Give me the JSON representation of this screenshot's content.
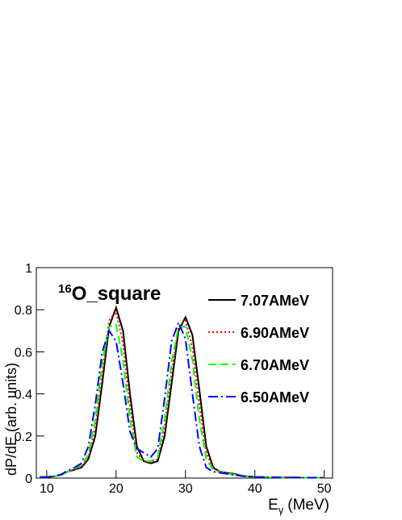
{
  "chart_data": {
    "type": "line",
    "annotation": {
      "superscript": "16",
      "text": "O_square"
    },
    "x_label": {
      "base": "E",
      "subscript": "γ",
      "unit": "(MeV)"
    },
    "y_label": "dP/dE (arb. units)",
    "x": [
      9,
      10,
      11,
      12,
      13,
      14,
      15,
      16,
      17,
      18,
      19,
      20,
      21,
      22,
      23,
      24,
      25,
      26,
      27,
      28,
      29,
      30,
      31,
      32,
      33,
      34,
      35,
      36,
      37,
      38,
      39,
      40,
      41,
      42,
      43,
      44,
      45,
      46,
      47,
      48,
      49,
      50
    ],
    "series": [
      {
        "name": "7.07AMeV",
        "color": "#000000",
        "dash": "solid",
        "values": [
          0.005,
          0.005,
          0.008,
          0.015,
          0.03,
          0.04,
          0.05,
          0.09,
          0.2,
          0.45,
          0.72,
          0.81,
          0.7,
          0.4,
          0.15,
          0.08,
          0.07,
          0.08,
          0.2,
          0.45,
          0.7,
          0.765,
          0.68,
          0.42,
          0.15,
          0.05,
          0.03,
          0.025,
          0.02,
          0.012,
          0.008,
          0.006,
          0.005,
          0.004,
          0.004,
          0.003,
          0.003,
          0.003,
          0.002,
          0.002,
          0.002,
          0.002
        ]
      },
      {
        "name": "6.90AMeV",
        "color": "#ff0000",
        "dash": "dotted",
        "values": [
          0.005,
          0.005,
          0.008,
          0.015,
          0.03,
          0.04,
          0.055,
          0.1,
          0.24,
          0.5,
          0.75,
          0.79,
          0.64,
          0.34,
          0.12,
          0.08,
          0.075,
          0.09,
          0.24,
          0.5,
          0.72,
          0.75,
          0.62,
          0.35,
          0.12,
          0.045,
          0.03,
          0.024,
          0.018,
          0.012,
          0.008,
          0.006,
          0.005,
          0.004,
          0.004,
          0.003,
          0.003,
          0.003,
          0.002,
          0.002,
          0.002,
          0.002
        ]
      },
      {
        "name": "6.70AMeV",
        "color": "#00ff00",
        "dash": "dashed",
        "values": [
          0.005,
          0.005,
          0.008,
          0.015,
          0.03,
          0.045,
          0.06,
          0.11,
          0.28,
          0.55,
          0.72,
          0.73,
          0.56,
          0.28,
          0.1,
          0.08,
          0.08,
          0.1,
          0.28,
          0.55,
          0.72,
          0.72,
          0.56,
          0.28,
          0.09,
          0.04,
          0.028,
          0.022,
          0.017,
          0.011,
          0.008,
          0.006,
          0.005,
          0.004,
          0.004,
          0.003,
          0.003,
          0.003,
          0.002,
          0.002,
          0.002,
          0.002
        ]
      },
      {
        "name": "6.50AMeV",
        "color": "#0000ff",
        "dash": "dashdot",
        "values": [
          0.005,
          0.005,
          0.008,
          0.016,
          0.035,
          0.05,
          0.07,
          0.15,
          0.35,
          0.6,
          0.7,
          0.65,
          0.45,
          0.22,
          0.14,
          0.12,
          0.1,
          0.14,
          0.38,
          0.65,
          0.74,
          0.66,
          0.4,
          0.15,
          0.05,
          0.03,
          0.025,
          0.02,
          0.015,
          0.01,
          0.007,
          0.005,
          0.005,
          0.004,
          0.004,
          0.003,
          0.003,
          0.003,
          0.002,
          0.002,
          0.002,
          0.002
        ]
      }
    ],
    "xlim": [
      8.5,
      51.2
    ],
    "ylim": [
      0,
      1
    ],
    "xticks": [
      10,
      20,
      30,
      40,
      50
    ],
    "yticks": [
      0,
      0.2,
      0.4,
      0.6,
      0.8,
      1
    ],
    "legend": "top-right"
  }
}
